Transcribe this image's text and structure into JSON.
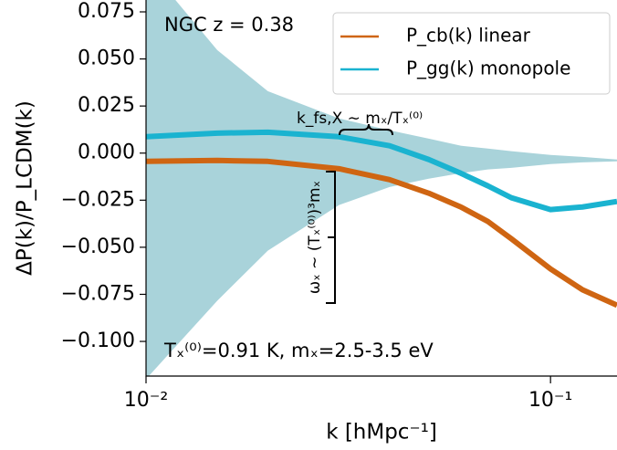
{
  "chart_data": {
    "type": "line",
    "xlabel": "k  [hMpc⁻¹]",
    "ylabel": "ΔP(k)/P_LCDM(k)",
    "log_x": true,
    "xlim": [
      0.01,
      0.146
    ],
    "ylim": [
      -0.1184,
      0.0813
    ],
    "xticks": [
      {
        "value": 0.01,
        "label": "10⁻²"
      },
      {
        "value": 0.1,
        "label": "10⁻¹"
      }
    ],
    "yticks": [
      {
        "value": 0.075,
        "label": "0.075"
      },
      {
        "value": 0.05,
        "label": "0.050"
      },
      {
        "value": 0.025,
        "label": "0.025"
      },
      {
        "value": 0,
        "label": "0.000"
      },
      {
        "value": -0.025,
        "label": "−0.025"
      },
      {
        "value": -0.05,
        "label": "−0.050"
      },
      {
        "value": -0.075,
        "label": "−0.075"
      },
      {
        "value": -0.1,
        "label": "−0.100"
      }
    ],
    "legend_position": "upper right",
    "x": [
      0.01,
      0.015,
      0.02,
      0.03,
      0.04,
      0.05,
      0.06,
      0.07,
      0.08,
      0.1,
      0.12,
      0.146
    ],
    "series": [
      {
        "name": "P_cb(k) linear",
        "color": "#cf6512",
        "values": [
          -0.0044,
          -0.0039,
          -0.0044,
          -0.0083,
          -0.0141,
          -0.0213,
          -0.0286,
          -0.0363,
          -0.0455,
          -0.0615,
          -0.0726,
          -0.0808
        ]
      },
      {
        "name": "P_gg(k) monopole",
        "color": "#1ab3d0",
        "values": [
          0.0087,
          0.0106,
          0.0111,
          0.0087,
          0.0039,
          -0.0034,
          -0.0107,
          -0.0174,
          -0.0237,
          -0.03,
          -0.0286,
          -0.0257
        ]
      }
    ],
    "band": {
      "color": "#a9d3da",
      "upper": [
        0.1,
        0.0547,
        0.0329,
        0.0184,
        0.0121,
        0.0077,
        0.0039,
        0.0024,
        0.001,
        -0.001,
        -0.002,
        -0.0034
      ],
      "lower": [
        -0.12,
        -0.0784,
        -0.0518,
        -0.0276,
        -0.018,
        -0.0136,
        -0.0107,
        -0.0087,
        -0.0078,
        -0.0058,
        -0.0049,
        -0.0044
      ]
    },
    "annotations": [
      "NGC z = 0.38",
      "Tₓ⁽⁰⁾=0.91 K, mₓ=2.5-3.5 eV",
      "k_fs,X ∼ mₓ/Tₓ⁽⁰⁾",
      "ωₓ ∼ (Tₓ⁽⁰⁾)³mₓ"
    ]
  }
}
